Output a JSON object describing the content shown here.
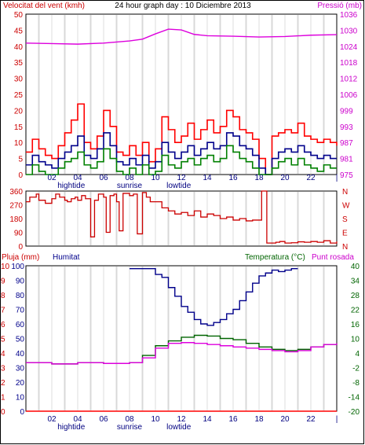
{
  "chart_data": [
    {
      "type": "line",
      "title": "24 hour graph day : 10 Diciembre 2013",
      "left_axis_label": "Velocitat del vent (kmh)",
      "right_axis_label": "Pressió (mb)",
      "left_ticks": [
        "50",
        "45",
        "40",
        "35",
        "30",
        "25",
        "20",
        "15",
        "10",
        "5",
        "0"
      ],
      "right_ticks": [
        "1036",
        "1030",
        "1024",
        "1018",
        "1012",
        "1006",
        "999",
        "993",
        "987",
        "981",
        "975"
      ],
      "ylim": [
        0,
        50
      ],
      "ylim_right": [
        975,
        1036
      ],
      "x_ticks": [
        "02",
        "04",
        "06",
        "08",
        "10",
        "12",
        "14",
        "16",
        "18",
        "20",
        "22"
      ],
      "x_sublabels": [
        {
          "text": "hightide",
          "hour": 3.5
        },
        {
          "text": "sunrise",
          "hour": 8
        },
        {
          "text": "lowtide",
          "hour": 11.8
        }
      ],
      "series": [
        {
          "name": "Pressió (mb)",
          "color": "#dd00dd",
          "x": [
            0,
            2,
            4,
            6,
            8,
            9,
            10,
            11,
            12,
            13,
            14,
            16,
            18,
            20,
            22,
            24
          ],
          "y": [
            1025,
            1024.8,
            1024.6,
            1025,
            1025.8,
            1026.5,
            1028.5,
            1030.3,
            1030,
            1028.3,
            1027.8,
            1027.6,
            1027.3,
            1027.5,
            1028,
            1028.2
          ]
        },
        {
          "name": "wind gust",
          "color": "#ff0000",
          "x": [
            0,
            0.5,
            1,
            1.5,
            2,
            2.5,
            3,
            3.5,
            4,
            4.5,
            5,
            5.5,
            6,
            6.5,
            7,
            7.5,
            8,
            8.5,
            9,
            9.5,
            10,
            10.5,
            11,
            11.5,
            12,
            12.5,
            13,
            13.5,
            14,
            14.5,
            15,
            15.5,
            16,
            16.5,
            17,
            17.5,
            18,
            18.5,
            19,
            19.5,
            20,
            20.5,
            21,
            21.5,
            22,
            22.5,
            23,
            23.5,
            24
          ],
          "y": [
            7,
            11,
            8,
            6,
            5,
            9,
            13,
            17,
            22,
            10,
            8,
            12,
            20,
            15,
            7,
            6,
            9,
            6,
            10,
            4,
            8,
            18,
            14,
            10,
            12,
            16,
            11,
            14,
            17,
            13,
            15,
            20,
            18,
            14,
            13,
            11,
            5,
            0,
            12,
            13,
            14,
            13,
            16,
            12,
            11,
            10,
            11,
            10,
            9
          ]
        },
        {
          "name": "wind average",
          "color": "#00008b",
          "x": [
            0,
            0.5,
            1,
            1.5,
            2,
            2.5,
            3,
            3.5,
            4,
            4.5,
            5,
            5.5,
            6,
            6.5,
            7,
            7.5,
            8,
            8.5,
            9,
            9.5,
            10,
            10.5,
            11,
            11.5,
            12,
            12.5,
            13,
            13.5,
            14,
            14.5,
            15,
            15.5,
            16,
            16.5,
            17,
            17.5,
            18,
            18.5,
            19,
            19.5,
            20,
            20.5,
            21,
            21.5,
            22,
            22.5,
            23,
            23.5,
            24
          ],
          "y": [
            3,
            6,
            4,
            3,
            2,
            5,
            7,
            9,
            12,
            6,
            5,
            8,
            13,
            9,
            4,
            3,
            5,
            3,
            6,
            2,
            4,
            10,
            7,
            5,
            7,
            9,
            6,
            8,
            10,
            8,
            9,
            13,
            12,
            9,
            8,
            6,
            2,
            0,
            5,
            7,
            8,
            7,
            9,
            7,
            6,
            5,
            6,
            5,
            5
          ]
        },
        {
          "name": "wind min",
          "color": "#008000",
          "x": [
            0,
            0.5,
            1,
            1.5,
            2,
            2.5,
            3,
            3.5,
            4,
            4.5,
            5,
            5.5,
            6,
            6.5,
            7,
            7.5,
            8,
            8.5,
            9,
            9.5,
            10,
            10.5,
            11,
            11.5,
            12,
            12.5,
            13,
            13.5,
            14,
            14.5,
            15,
            15.5,
            16,
            16.5,
            17,
            17.5,
            18,
            18.5,
            19,
            19.5,
            20,
            20.5,
            21,
            21.5,
            22,
            22.5,
            23,
            23.5,
            24
          ],
          "y": [
            0,
            3,
            1,
            0,
            0,
            2,
            4,
            5,
            7,
            3,
            2,
            4,
            8,
            5,
            1,
            0,
            2,
            0,
            3,
            0,
            1,
            6,
            3,
            2,
            4,
            5,
            3,
            5,
            6,
            4,
            5,
            9,
            7,
            5,
            4,
            2,
            0,
            0,
            2,
            4,
            5,
            3,
            5,
            3,
            2,
            1,
            3,
            2,
            2
          ]
        }
      ]
    },
    {
      "type": "line",
      "left_ticks": [
        "360",
        "270",
        "180",
        "90",
        "0"
      ],
      "right_labels": [
        "N",
        "W",
        "S",
        "E",
        "N"
      ],
      "ylim": [
        0,
        360
      ],
      "series": [
        {
          "name": "wind direction",
          "color": "#cc0000",
          "x": [
            0,
            0.3,
            0.8,
            1,
            1.5,
            2,
            2.3,
            2.6,
            3,
            3.2,
            3.5,
            3.8,
            4,
            4.3,
            4.6,
            5,
            5.3,
            5.6,
            6,
            6.2,
            6.5,
            6.8,
            7,
            7.2,
            7.5,
            8,
            8.3,
            8.6,
            9,
            9.3,
            9.6,
            10,
            10.5,
            11,
            11.5,
            12,
            12.5,
            13,
            13.5,
            14,
            14.5,
            15,
            15.5,
            16,
            16.5,
            17,
            17.5,
            18,
            18.2,
            18.6,
            19,
            19.3,
            19.6,
            20,
            20.5,
            21,
            21.5,
            22,
            22.5,
            23,
            23.5,
            24
          ],
          "y": [
            290,
            320,
            340,
            300,
            280,
            310,
            340,
            320,
            300,
            290,
            310,
            320,
            300,
            330,
            310,
            60,
            300,
            340,
            320,
            90,
            330,
            340,
            290,
            100,
            345,
            330,
            340,
            80,
            350,
            320,
            290,
            290,
            250,
            230,
            210,
            220,
            200,
            230,
            190,
            210,
            200,
            180,
            190,
            170,
            180,
            165,
            170,
            170,
            360,
            20,
            20,
            25,
            30,
            20,
            22,
            28,
            25,
            30,
            25,
            35,
            20,
            30
          ]
        }
      ]
    },
    {
      "type": "line",
      "left_axis_label": "Pluja (mm)",
      "left_axis_label_2": "Humitat",
      "right_axis_label": "Temperatura (°C)",
      "right_axis_label_2": "Punt rosada",
      "rain_ticks": [
        "10",
        "9",
        "8",
        "7",
        "6",
        "5",
        "4",
        "3",
        "2",
        "1",
        "0"
      ],
      "humidity_ticks": [
        "100",
        "90",
        "80",
        "70",
        "60",
        "50",
        "40",
        "30",
        "20",
        "10",
        "0"
      ],
      "temp_ticks": [
        "40",
        "34",
        "28",
        "22",
        "16",
        "10",
        "4",
        "-2",
        "-8",
        "-14",
        "-20"
      ],
      "ylim_humidity": [
        0,
        100
      ],
      "ylim_temp": [
        -20,
        40
      ],
      "series": [
        {
          "name": "Humitat",
          "color": "#00008b",
          "x": [
            8,
            9,
            9.5,
            10,
            10.5,
            11,
            11.5,
            12,
            12.5,
            13,
            13.5,
            14,
            14.5,
            15,
            15.5,
            16,
            16.5,
            17,
            17.5,
            18,
            18.5,
            19,
            19.5,
            20,
            20.5,
            21
          ],
          "y": [
            98,
            98,
            98,
            94,
            92,
            85,
            79,
            72,
            68,
            63,
            60,
            59,
            61,
            63,
            67,
            70,
            76,
            82,
            88,
            93,
            95,
            97,
            96,
            97,
            98,
            98
          ]
        },
        {
          "name": "Temperatura (°C)",
          "color": "#006400",
          "x": [
            0,
            2,
            4,
            6,
            8,
            9,
            10,
            11,
            12,
            13,
            14,
            15,
            16,
            17,
            18,
            19,
            20,
            21,
            22,
            23,
            24
          ],
          "y": [
            0,
            -0.5,
            0,
            -0.3,
            0,
            3,
            7,
            9,
            10.5,
            11.3,
            11,
            10,
            9.5,
            8,
            6.5,
            5.5,
            5,
            5.5,
            6.5,
            7.5,
            8
          ]
        },
        {
          "name": "Punt rosada",
          "color": "#dd00dd",
          "x": [
            0,
            2,
            4,
            6,
            8,
            9,
            10,
            11,
            12,
            13,
            14,
            15,
            16,
            17,
            18,
            19,
            20,
            21,
            22,
            23,
            24
          ],
          "y": [
            0,
            -0.5,
            0,
            -0.3,
            0,
            2,
            6,
            8,
            8.3,
            8,
            7.5,
            7,
            6.5,
            6,
            5.5,
            5,
            4.5,
            5,
            6.5,
            7.5,
            8
          ]
        },
        {
          "name": "Pluja (mm)",
          "color": "#ff0000",
          "x": [
            0,
            24
          ],
          "y": [
            0,
            0
          ]
        }
      ],
      "x_ticks": [
        "02",
        "04",
        "06",
        "08",
        "10",
        "12",
        "14",
        "16",
        "18",
        "20",
        "22"
      ],
      "x_sublabels": [
        {
          "text": "hightide",
          "hour": 3.5
        },
        {
          "text": "sunrise",
          "hour": 8
        },
        {
          "text": "lowtide",
          "hour": 11.8
        }
      ]
    }
  ]
}
